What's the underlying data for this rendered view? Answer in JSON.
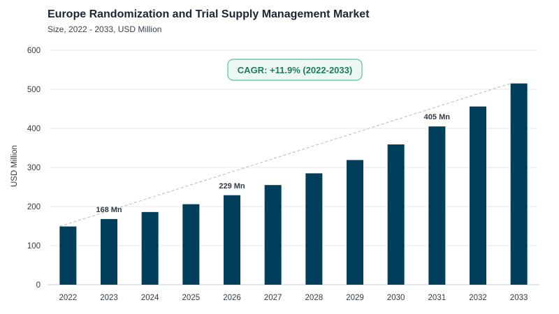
{
  "header": {
    "title": "Europe Randomization and Trial Supply Management Market",
    "subtitle": "Size, 2022 - 2033, USD Million"
  },
  "colors": {
    "bar": "#003f5c",
    "grid": "#e6e8eb",
    "trend": "#b5b9bf",
    "cagr_border": "#5fbf98",
    "cagr_fill": "#eef8f3",
    "cagr_text": "#1f7a5a"
  },
  "chart_data": {
    "type": "bar",
    "title": "Europe Randomization and Trial Supply Management Market",
    "subtitle": "Size, 2022 - 2033, USD Million",
    "xlabel": "",
    "ylabel": "USD Million",
    "ylim": [
      0,
      600
    ],
    "yticks": [
      "0",
      "100",
      "200",
      "300",
      "400",
      "500",
      "600"
    ],
    "grid": true,
    "categories": [
      "2022",
      "2023",
      "2024",
      "2025",
      "2026",
      "2027",
      "2028",
      "2029",
      "2030",
      "2031",
      "2032",
      "2033"
    ],
    "values": [
      149,
      168,
      186,
      206,
      229,
      255,
      285,
      319,
      359,
      405,
      456,
      515
    ],
    "data_labels": [
      {
        "index": 1,
        "text": "168 Mn"
      },
      {
        "index": 4,
        "text": "229 Mn"
      },
      {
        "index": 9,
        "text": "405 Mn"
      }
    ],
    "trendline": {
      "from_index": 0,
      "to_index": 11
    },
    "annotation": "CAGR: +11.9% (2022-2033)"
  }
}
